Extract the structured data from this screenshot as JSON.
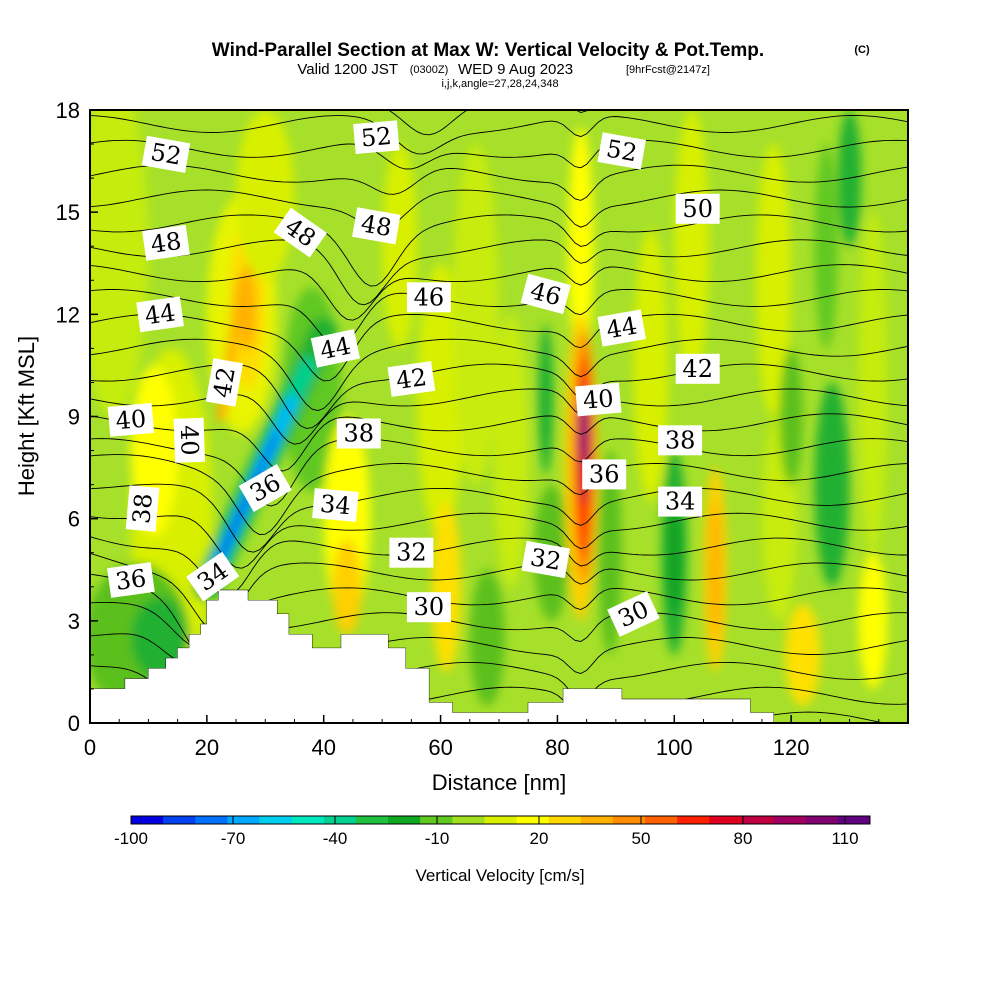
{
  "title": {
    "main": "Wind-Parallel Section at Max W: Vertical Velocity & Pot.Temp.",
    "copyright": "(C)",
    "valid_prefix": "Valid 1200 JST",
    "valid_utc": "(0300Z)",
    "valid_date": "WED 9 Aug 2023",
    "forecast": "[9hrFcst@2147z]",
    "indices": "i,j,k,angle=27,28,24,348"
  },
  "chart_data": {
    "type": "heatmap",
    "xlabel": "Distance [nm]",
    "ylabel": "Height [Kft MSL]",
    "xlim": [
      0,
      140
    ],
    "ylim": [
      0,
      18
    ],
    "x_ticks": [
      "0",
      "20",
      "40",
      "60",
      "80",
      "100",
      "120"
    ],
    "y_ticks": [
      "0",
      "3",
      "6",
      "9",
      "12",
      "15",
      "18"
    ],
    "colorbar": {
      "label": "Vertical Velocity [cm/s]",
      "tick_labels": [
        "-100",
        "-70",
        "-40",
        "-10",
        "20",
        "50",
        "80",
        "110"
      ],
      "colors": [
        "#0000e0",
        "#0040f0",
        "#0070ff",
        "#00a8ff",
        "#00d0f0",
        "#00e8c0",
        "#00d090",
        "#20c040",
        "#10a820",
        "#60c820",
        "#a0e020",
        "#d8f000",
        "#ffff00",
        "#ffd800",
        "#ffb000",
        "#ff8c00",
        "#ff6000",
        "#ff2000",
        "#e00020",
        "#c00040",
        "#a00060",
        "#800070",
        "#600080"
      ]
    },
    "terrain": [
      [
        0,
        1
      ],
      [
        6,
        1
      ],
      [
        6,
        1.3
      ],
      [
        10,
        1.3
      ],
      [
        10,
        1.6
      ],
      [
        13,
        1.6
      ],
      [
        13,
        1.9
      ],
      [
        15,
        1.9
      ],
      [
        15,
        2.2
      ],
      [
        17,
        2.2
      ],
      [
        17,
        2.6
      ],
      [
        19,
        2.6
      ],
      [
        19,
        2.9
      ],
      [
        20,
        2.9
      ],
      [
        20,
        3.6
      ],
      [
        22,
        3.6
      ],
      [
        22,
        3.9
      ],
      [
        27,
        3.9
      ],
      [
        27,
        3.6
      ],
      [
        32,
        3.6
      ],
      [
        32,
        3.2
      ],
      [
        34,
        3.2
      ],
      [
        34,
        2.6
      ],
      [
        38,
        2.6
      ],
      [
        38,
        2.2
      ],
      [
        43,
        2.2
      ],
      [
        43,
        2.6
      ],
      [
        47,
        2.6
      ],
      [
        47,
        2.6
      ],
      [
        51,
        2.6
      ],
      [
        51,
        2.2
      ],
      [
        54,
        2.2
      ],
      [
        54,
        1.6
      ],
      [
        58,
        1.6
      ],
      [
        58,
        0.6
      ],
      [
        62,
        0.6
      ],
      [
        62,
        0.3
      ],
      [
        75,
        0.3
      ],
      [
        75,
        0.6
      ],
      [
        81,
        0.6
      ],
      [
        81,
        1.0
      ],
      [
        86,
        1.0
      ],
      [
        86,
        1.0
      ],
      [
        91,
        1.0
      ],
      [
        91,
        0.7
      ],
      [
        113,
        0.7
      ],
      [
        113,
        0.3
      ],
      [
        117,
        0.3
      ],
      [
        117,
        0
      ]
    ],
    "theta_contour_labels": [
      {
        "text": "52",
        "x": 13,
        "y": 16.7,
        "rot": 10
      },
      {
        "text": "52",
        "x": 49,
        "y": 17.2,
        "rot": -5
      },
      {
        "text": "52",
        "x": 91,
        "y": 16.8,
        "rot": 10
      },
      {
        "text": "50",
        "x": 104,
        "y": 15.1,
        "rot": 0
      },
      {
        "text": "48",
        "x": 13,
        "y": 14.1,
        "rot": -8
      },
      {
        "text": "48",
        "x": 36,
        "y": 14.4,
        "rot": 35
      },
      {
        "text": "48",
        "x": 49,
        "y": 14.6,
        "rot": 10
      },
      {
        "text": "46",
        "x": 58,
        "y": 12.5,
        "rot": 0
      },
      {
        "text": "46",
        "x": 78,
        "y": 12.6,
        "rot": 15
      },
      {
        "text": "44",
        "x": 12,
        "y": 12.0,
        "rot": -8
      },
      {
        "text": "44",
        "x": 42,
        "y": 11.0,
        "rot": -12
      },
      {
        "text": "44",
        "x": 91,
        "y": 11.6,
        "rot": -10
      },
      {
        "text": "42",
        "x": 23,
        "y": 10.0,
        "rot": -80
      },
      {
        "text": "42",
        "x": 55,
        "y": 10.1,
        "rot": -8
      },
      {
        "text": "42",
        "x": 104,
        "y": 10.4,
        "rot": 0
      },
      {
        "text": "40",
        "x": 7,
        "y": 8.9,
        "rot": -5
      },
      {
        "text": "40",
        "x": 17,
        "y": 8.3,
        "rot": 88
      },
      {
        "text": "40",
        "x": 87,
        "y": 9.5,
        "rot": -5
      },
      {
        "text": "38",
        "x": 46,
        "y": 8.5,
        "rot": 0
      },
      {
        "text": "38",
        "x": 101,
        "y": 8.3,
        "rot": 0
      },
      {
        "text": "38",
        "x": 9,
        "y": 6.3,
        "rot": -85
      },
      {
        "text": "36",
        "x": 30,
        "y": 6.9,
        "rot": -30
      },
      {
        "text": "36",
        "x": 88,
        "y": 7.3,
        "rot": 0
      },
      {
        "text": "34",
        "x": 42,
        "y": 6.4,
        "rot": 5
      },
      {
        "text": "34",
        "x": 101,
        "y": 6.5,
        "rot": 0
      },
      {
        "text": "36",
        "x": 7,
        "y": 4.2,
        "rot": -8
      },
      {
        "text": "34",
        "x": 21,
        "y": 4.3,
        "rot": -35
      },
      {
        "text": "32",
        "x": 55,
        "y": 5.0,
        "rot": 0
      },
      {
        "text": "32",
        "x": 78,
        "y": 4.8,
        "rot": 10
      },
      {
        "text": "30",
        "x": 58,
        "y": 3.4,
        "rot": 0
      },
      {
        "text": "30",
        "x": 93,
        "y": 3.2,
        "rot": -25
      }
    ]
  }
}
